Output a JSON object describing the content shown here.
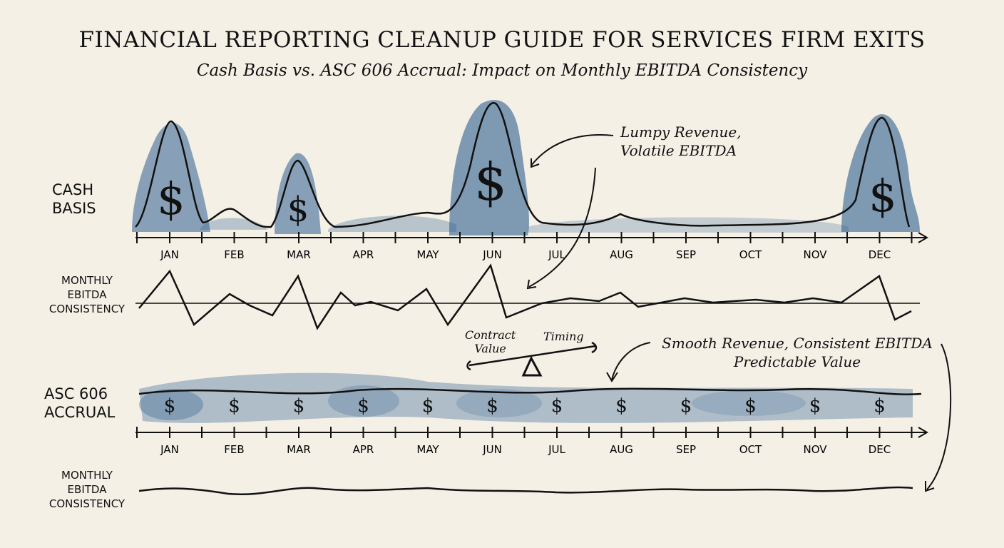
{
  "header": {
    "title": "FINANCIAL REPORTING CLEANUP GUIDE FOR SERVICES FIRM EXITS",
    "subtitle": "Cash Basis vs. ASC 606 Accrual: Impact on Monthly EBITDA Consistency"
  },
  "cash_basis": {
    "label_line1": "CASH",
    "label_line2": "BASIS",
    "ebitda_label": [
      "MONTHLY",
      "EBITDA",
      "CONSISTENCY"
    ],
    "annotation_line1": "Lumpy Revenue,",
    "annotation_line2": "Volatile EBITDA",
    "peak_months": [
      "JAN",
      "MAR",
      "JUN",
      "DEC"
    ]
  },
  "accrual": {
    "label_line1": "ASC 606",
    "label_line2": "ACCRUAL",
    "ebitda_label": [
      "MONTHLY",
      "EBITDA",
      "CONSISTENCY"
    ],
    "annotation_line1": "Smooth Revenue, Consistent EBITDA",
    "annotation_line2": "Predictable Value"
  },
  "balance": {
    "left_label_line1": "Contract",
    "left_label_line2": "Value",
    "right_label": "Timing"
  },
  "months": [
    "JAN",
    "FEB",
    "MAR",
    "APR",
    "MAY",
    "JUN",
    "JUL",
    "AUG",
    "SEP",
    "OCT",
    "NOV",
    "DEC"
  ],
  "dollar_symbol": "$",
  "colors": {
    "watercolor_blue": "#2f5f8f",
    "ink": "#111111",
    "paper": "#f4f0e6"
  }
}
